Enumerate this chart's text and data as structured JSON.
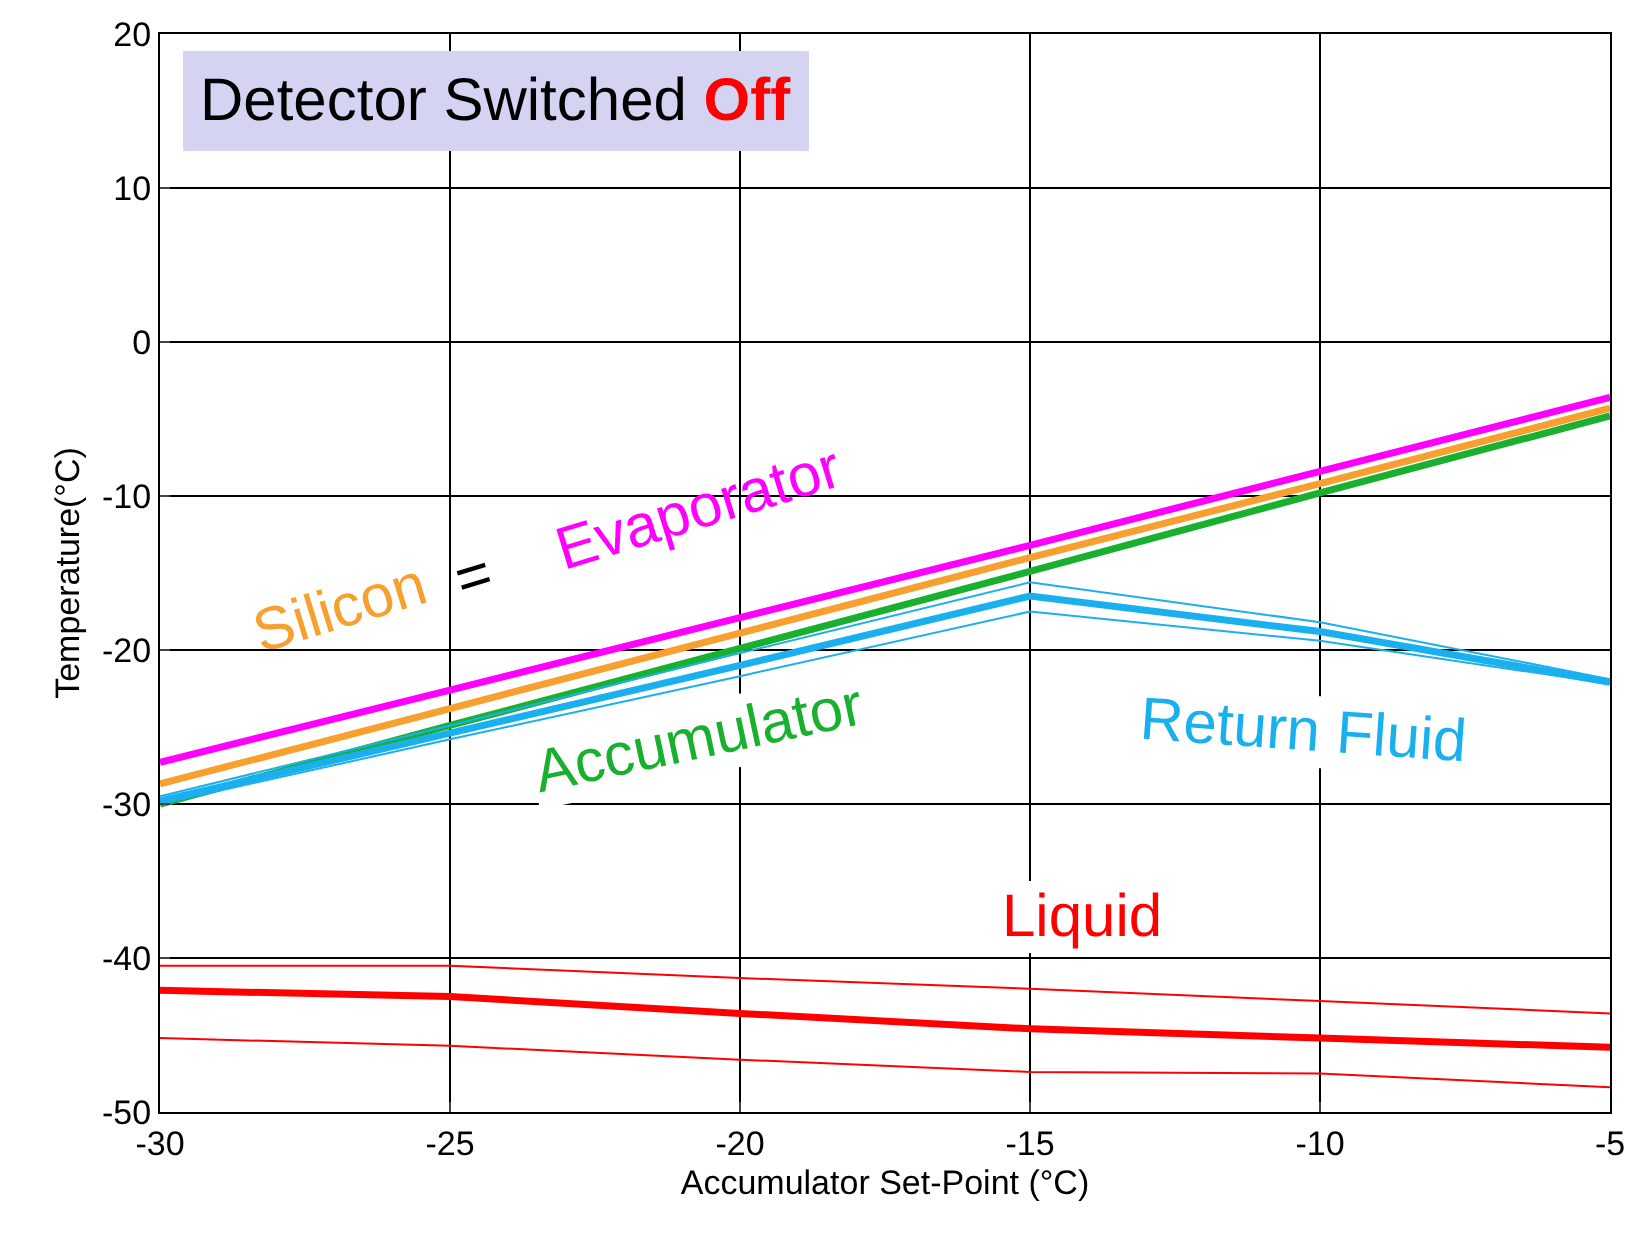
{
  "chart_data": {
    "type": "line",
    "title": "Detector Switched Off",
    "xlabel": "Accumulator Set-Point (°C)",
    "ylabel": "Temperature(°C)",
    "x": [
      -30,
      -25,
      -20,
      -15,
      -10,
      -5
    ],
    "series": [
      {
        "name": "Evaporator",
        "color": "#ff00ff",
        "values": [
          -27.3,
          -22.6,
          -17.9,
          -13.2,
          -8.4,
          -3.6
        ]
      },
      {
        "name": "Silicon",
        "color": "#f7a030",
        "values": [
          -28.7,
          -23.8,
          -18.9,
          -14.0,
          -9.2,
          -4.3
        ]
      },
      {
        "name": "Accumulator",
        "color": "#19b030",
        "values": [
          -30,
          -24.9,
          -19.9,
          -14.9,
          -9.8,
          -4.8
        ]
      },
      {
        "name": "Return Fluid",
        "color": "#1ab0f0",
        "values": [
          -29.8,
          -25.4,
          -21.0,
          -16.5,
          -18.8,
          -22.1
        ]
      },
      {
        "color": "#1ab0f0",
        "values": [
          -30,
          -25.8,
          -21.7,
          -17.5,
          -19.4,
          -22.2
        ]
      },
      {
        "color": "#1ab0f0",
        "values": [
          -29.5,
          -24.9,
          -20.2,
          -15.6,
          -18.2,
          -21.9
        ]
      },
      {
        "name": "Liquid",
        "color": "#ff0000",
        "values": [
          -42.1,
          -42.5,
          -43.6,
          -44.6,
          -45.2,
          -45.8
        ]
      },
      {
        "color": "#ff0000",
        "values": [
          -45.2,
          -45.7,
          -46.6,
          -47.4,
          -47.5,
          -48.4
        ]
      },
      {
        "color": "#ff0000",
        "values": [
          -40.5,
          -40.5,
          -41.3,
          -42.0,
          -42.8,
          -43.6
        ]
      }
    ],
    "annotations": [
      "="
    ],
    "xlim": [
      -30,
      -5
    ],
    "xticks": [
      -30,
      -25,
      -20,
      -15,
      -10,
      -5
    ],
    "ylim": [
      -50,
      20
    ],
    "yticks": [
      -50,
      -40,
      -30,
      -20,
      -10,
      0,
      10,
      20
    ],
    "grid": true,
    "legend": false,
    "line_style": "solid",
    "marker": "none"
  }
}
